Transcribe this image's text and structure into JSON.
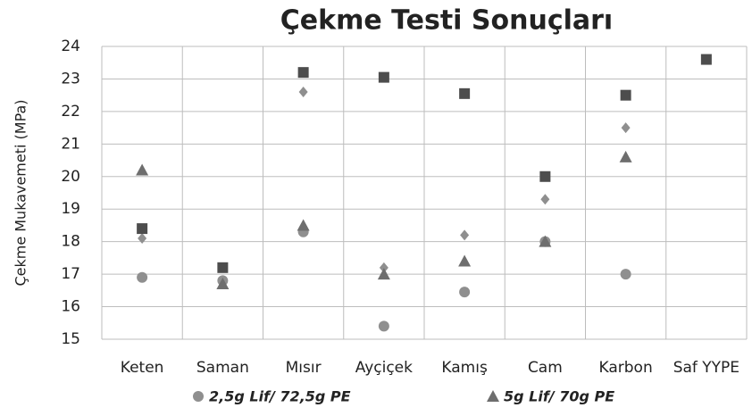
{
  "chart_data": {
    "type": "scatter",
    "title": "Çekme Testi Sonuçları",
    "ylabel": "Çekme Mukavemeti (MPa)",
    "categories": [
      "Keten",
      "Saman",
      "Mısır",
      "Ayçiçek",
      "Kamış",
      "Cam",
      "Karbon",
      "Saf YYPE"
    ],
    "series": [
      {
        "name": "2,5g Lif/ 72,5g PE",
        "color": "#8f8f8f",
        "marker": "circle",
        "values": [
          16.9,
          16.8,
          18.3,
          15.4,
          16.45,
          18.0,
          17.0,
          null
        ]
      },
      {
        "color": "#8f8f8f",
        "marker": "diamond",
        "values": [
          18.1,
          16.8,
          22.6,
          17.2,
          18.2,
          19.3,
          21.5,
          null
        ]
      },
      {
        "name": "5g Lif/ 70g PE",
        "color": "#6e6e6e",
        "marker": "triangle",
        "values": [
          20.2,
          16.7,
          18.5,
          17.0,
          17.4,
          18.0,
          20.6,
          null
        ]
      },
      {
        "color": "#4d4d4d",
        "marker": "square",
        "values": [
          18.4,
          17.2,
          23.2,
          23.05,
          22.55,
          20.0,
          22.5,
          23.6
        ]
      }
    ],
    "ylim": [
      15,
      24
    ],
    "yticks": [
      15,
      16,
      17,
      18,
      19,
      20,
      21,
      22,
      23,
      24
    ],
    "grid": true
  }
}
